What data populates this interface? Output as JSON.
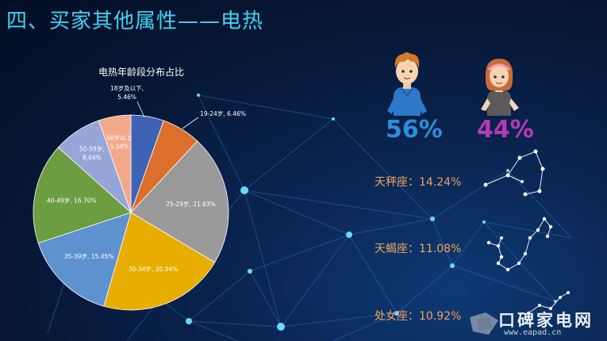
{
  "page": {
    "title": "四、买家其他属性——电热"
  },
  "gender": {
    "male_pct": "56%",
    "female_pct": "44%"
  },
  "zodiac": [
    {
      "label": "天秤座：14.24%"
    },
    {
      "label": "天蝎座：11.08%"
    },
    {
      "label": "处女座：10.92%"
    }
  ],
  "watermark": {
    "text": "口碑家电网",
    "url": "www.eapad.cn"
  },
  "colors": {
    "title": "#3fd3f5",
    "male": "#2b8ede",
    "female": "#b53ab5",
    "zodiac": "#f1a35a"
  },
  "chart_data": {
    "type": "pie",
    "title": "电热年龄段分布占比",
    "slices": [
      {
        "label": "18岁及以下",
        "value": 5.46,
        "display": "18岁及以下, 5.46%",
        "color": "#3f63b4"
      },
      {
        "label": "19-24岁",
        "value": 6.46,
        "display": "19-24岁, 6.46%",
        "color": "#dc6f2c"
      },
      {
        "label": "25-29岁",
        "value": 21.63,
        "display": "25-29岁, 21.63%",
        "color": "#9a9a9a"
      },
      {
        "label": "30-34岁",
        "value": 20.94,
        "display": "30-34岁, 20.94%",
        "color": "#e7ad00"
      },
      {
        "label": "35-39岁",
        "value": 15.45,
        "display": "35-39岁, 15.45%",
        "color": "#5d92cf"
      },
      {
        "label": "40-49岁",
        "value": 16.7,
        "display": "40-49岁, 16.70%",
        "color": "#6c9d40"
      },
      {
        "label": "50-59岁",
        "value": 8.04,
        "display": "50-59岁, 8.04%",
        "color": "#97a6d9"
      },
      {
        "label": "60岁以上",
        "value": 5.34,
        "display": "60岁以上, 5.34%",
        "color": "#f2a98a"
      }
    ],
    "start_angle_deg": 0,
    "direction": "clockwise"
  }
}
